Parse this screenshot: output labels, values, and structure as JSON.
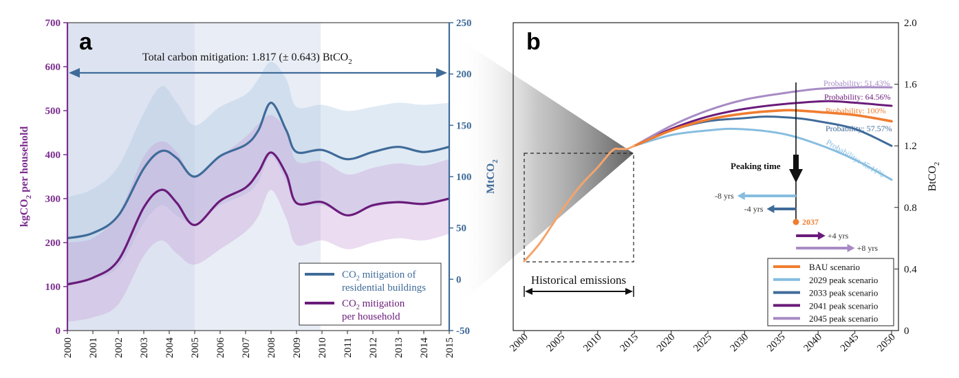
{
  "chart_data": [
    {
      "panel": "a",
      "type": "line",
      "annotation": "Total carbon mitigation: 1.817 (± 0.643) BtCO",
      "annotation_sub": "2",
      "xlim": [
        2000,
        2015
      ],
      "x_ticks": [
        "2000",
        "2001",
        "2002",
        "2003",
        "2004",
        "2005",
        "2006",
        "2007",
        "2008",
        "2009",
        "2010",
        "2011",
        "2012",
        "2013",
        "2014",
        "2015"
      ],
      "ylabel_left": "kgCO",
      "ylabel_left_sub": "2",
      "ylabel_left_rest": " per household",
      "ylim_left": [
        0,
        700
      ],
      "yticks_left": [
        "0",
        "100",
        "200",
        "300",
        "400",
        "500",
        "600",
        "700"
      ],
      "ylabel_right": "MtCO",
      "ylabel_right_sub": "2",
      "ylim_right": [
        -50,
        250
      ],
      "yticks_right": [
        "-50",
        "0",
        "50",
        "100",
        "150",
        "200",
        "250"
      ],
      "legend": [
        {
          "line1_pre": "CO",
          "line1_sub": "2",
          "line1_post": " mitigation of",
          "line2": "residential buildings",
          "color": "#3f6b99"
        },
        {
          "line1_pre": "CO",
          "line1_sub": "2",
          "line1_post": " mitigation",
          "line2": "per household",
          "color": "#6a1b7a"
        }
      ],
      "series": [
        {
          "axis": "right",
          "color": "#3f6b99",
          "x": [
            2000,
            2001,
            2002,
            2003,
            2003.7,
            2004.3,
            2005,
            2006,
            2007,
            2007.5,
            2008,
            2008.6,
            2009,
            2010,
            2011,
            2012,
            2013,
            2014,
            2015
          ],
          "y": [
            40,
            45,
            62,
            108,
            125,
            118,
            100,
            120,
            131,
            145,
            172,
            145,
            124,
            126,
            117,
            124,
            129,
            124,
            129
          ],
          "lower": [
            -5,
            0,
            12,
            55,
            72,
            62,
            55,
            72,
            83,
            95,
            120,
            95,
            75,
            72,
            64,
            70,
            74,
            72,
            78
          ],
          "upper": [
            80,
            88,
            110,
            162,
            188,
            172,
            150,
            168,
            180,
            195,
            212,
            195,
            168,
            170,
            164,
            168,
            172,
            170,
            172
          ]
        },
        {
          "axis": "left",
          "color": "#6a1b7a",
          "x": [
            2000,
            2001,
            2002,
            2003,
            2003.7,
            2004.3,
            2005,
            2006,
            2007,
            2007.5,
            2008,
            2008.6,
            2009,
            2010,
            2011,
            2012,
            2013,
            2014,
            2015
          ],
          "y": [
            105,
            120,
            160,
            280,
            320,
            290,
            240,
            295,
            325,
            360,
            405,
            355,
            290,
            292,
            262,
            285,
            292,
            288,
            300
          ],
          "lower": [
            20,
            30,
            60,
            170,
            205,
            175,
            150,
            185,
            225,
            260,
            320,
            255,
            195,
            205,
            185,
            200,
            210,
            205,
            220
          ],
          "upper": [
            200,
            210,
            265,
            395,
            430,
            405,
            350,
            395,
            440,
            470,
            490,
            455,
            385,
            385,
            355,
            370,
            380,
            375,
            390
          ]
        }
      ],
      "shaded_spans": [
        [
          2000,
          2005
        ],
        [
          2005,
          2010
        ]
      ]
    },
    {
      "panel": "b",
      "type": "line",
      "xlim": [
        2000,
        2050
      ],
      "x_ticks": [
        "2000",
        "2005",
        "2010",
        "2015",
        "2020",
        "2025",
        "2030",
        "2035",
        "2040",
        "2045",
        "2050"
      ],
      "ylabel": "BtCO",
      "ylabel_sub": "2",
      "ylim": [
        0,
        2.0
      ],
      "yticks": [
        "0",
        "0.4",
        "0.8",
        "1.2",
        "1.6",
        "2.0"
      ],
      "historical_label": "Historical emissions",
      "peaking_label": "Peaking time",
      "peak_year_label": "2037",
      "shift_labels": [
        "-8 yrs",
        "-4 yrs",
        "+4 yrs",
        "+8 yrs"
      ],
      "historical": {
        "color": "#f4a46c",
        "x": [
          2000,
          2002,
          2004,
          2006,
          2008,
          2010,
          2012,
          2013,
          2014,
          2015
        ],
        "y": [
          0.45,
          0.56,
          0.7,
          0.84,
          0.96,
          1.06,
          1.17,
          1.18,
          1.18,
          1.2
        ]
      },
      "series": [
        {
          "name": "BAU scenario",
          "prob": "Probability: 100%",
          "color": "#ef7d31",
          "x": [
            2015,
            2020,
            2025,
            2030,
            2035,
            2037,
            2040,
            2045,
            2050
          ],
          "y": [
            1.2,
            1.3,
            1.37,
            1.41,
            1.43,
            1.43,
            1.42,
            1.4,
            1.36
          ]
        },
        {
          "name": "2029 peak scenario",
          "prob": "Probability: 45.11%",
          "color": "#86bde0",
          "x": [
            2015,
            2020,
            2025,
            2029,
            2035,
            2040,
            2045,
            2050
          ],
          "y": [
            1.2,
            1.27,
            1.3,
            1.31,
            1.28,
            1.21,
            1.11,
            0.98
          ]
        },
        {
          "name": "2033 peak scenario",
          "prob": "Probability: 57.57%",
          "color": "#3f6b99",
          "x": [
            2015,
            2020,
            2025,
            2030,
            2033,
            2037,
            2040,
            2045,
            2050
          ],
          "y": [
            1.2,
            1.3,
            1.36,
            1.38,
            1.39,
            1.38,
            1.36,
            1.31,
            1.2
          ]
        },
        {
          "name": "2041 peak scenario",
          "prob": "Probability: 64.56%",
          "color": "#6a1b7a",
          "x": [
            2015,
            2020,
            2025,
            2030,
            2035,
            2041,
            2045,
            2050
          ],
          "y": [
            1.2,
            1.31,
            1.39,
            1.44,
            1.47,
            1.49,
            1.48,
            1.46
          ]
        },
        {
          "name": "2045 peak scenario",
          "prob": "Probability: 51.43%",
          "color": "#a78bc4",
          "x": [
            2015,
            2020,
            2025,
            2030,
            2035,
            2040,
            2045,
            2050
          ],
          "y": [
            1.2,
            1.33,
            1.43,
            1.5,
            1.54,
            1.57,
            1.58,
            1.58
          ]
        }
      ]
    }
  ],
  "panel_labels": [
    "a",
    "b"
  ]
}
